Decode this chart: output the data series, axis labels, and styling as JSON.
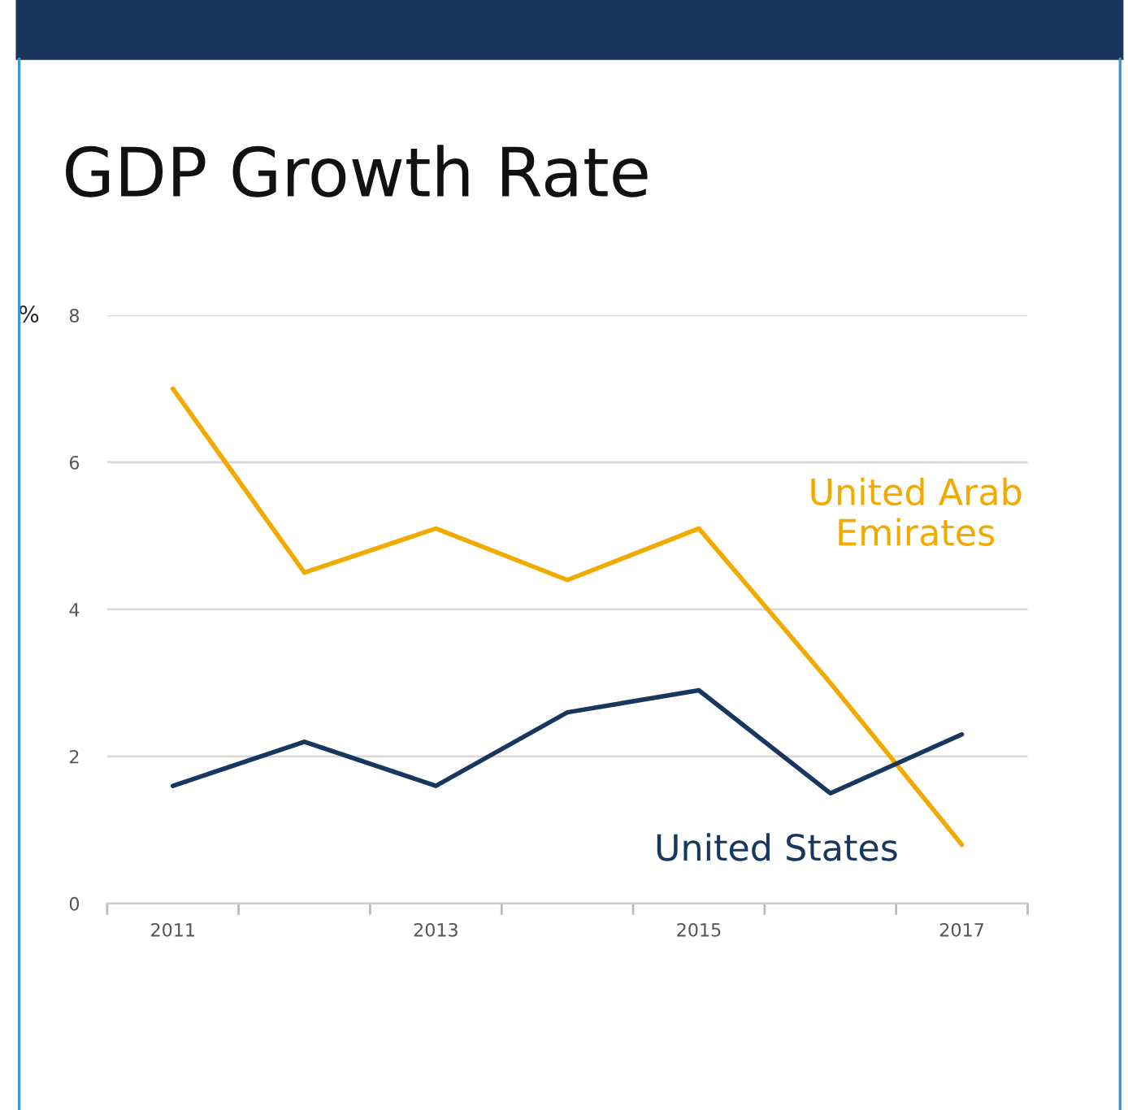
{
  "chart_data": {
    "type": "line",
    "title": "GDP Growth Rate",
    "ylabel": "%",
    "x": [
      2011,
      2012,
      2013,
      2014,
      2015,
      2016,
      2017
    ],
    "series": [
      {
        "name": "United Arab Emirates",
        "color": "#f2a900",
        "values": [
          7.0,
          4.5,
          5.1,
          4.4,
          5.1,
          3.0,
          0.8
        ]
      },
      {
        "name": "United States",
        "color": "#17375e",
        "values": [
          1.6,
          2.2,
          1.6,
          2.6,
          2.9,
          1.5,
          2.3
        ]
      }
    ],
    "xlim": [
      2010.5,
      2017.5
    ],
    "xticks": [
      {
        "value": 2010.5,
        "label": null
      },
      {
        "value": 2011,
        "label": "2011"
      },
      {
        "value": 2011.5,
        "label": null
      },
      {
        "value": 2012.5,
        "label": null
      },
      {
        "value": 2013,
        "label": "2013"
      },
      {
        "value": 2013.5,
        "label": null
      },
      {
        "value": 2014.5,
        "label": null
      },
      {
        "value": 2015,
        "label": "2015"
      },
      {
        "value": 2015.5,
        "label": null
      },
      {
        "value": 2016.5,
        "label": null
      },
      {
        "value": 2017,
        "label": "2017"
      },
      {
        "value": 2017.5,
        "label": null
      }
    ],
    "ylim": [
      0,
      8
    ],
    "yticks": [
      0,
      2,
      4,
      6,
      8
    ],
    "grid": "y",
    "legend": false,
    "marker": "none",
    "line_style": "solid"
  }
}
